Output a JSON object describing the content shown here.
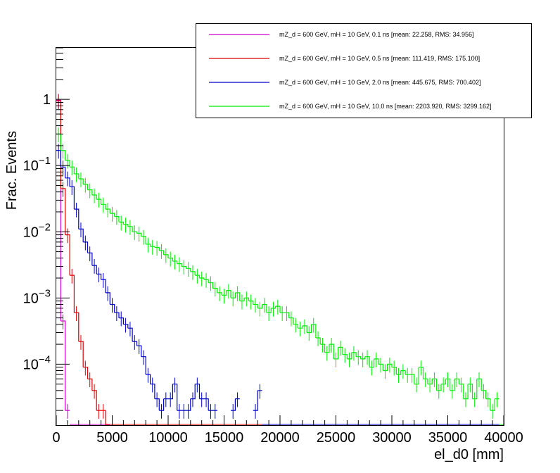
{
  "chart_data": {
    "type": "line",
    "style": "step-histogram",
    "xlabel": "el_d0 [mm]",
    "ylabel": "Frac. Events",
    "xlim": [
      0,
      40000
    ],
    "ylim": [
      1.2e-05,
      6
    ],
    "yscale": "log",
    "bin_width": 400,
    "x_ticks": [
      0,
      5000,
      10000,
      15000,
      20000,
      25000,
      30000,
      35000,
      40000
    ],
    "x_tick_labels": [
      "0",
      "5000",
      "10000",
      "15000",
      "20000",
      "25000",
      "30000",
      "35000",
      "40000"
    ],
    "y_ticks": [
      0.0001,
      0.001,
      0.01,
      0.1,
      1
    ],
    "y_tick_mantissa": [
      "10",
      "10",
      "10",
      "10",
      "1"
    ],
    "y_tick_exponents": [
      "−4",
      "−3",
      "−2",
      "−1",
      ""
    ],
    "grid": false,
    "legend_position": "top-right",
    "series": [
      {
        "name": "mZ_d = 600 GeV, mH = 10 GeV, 0.1 ns [mean: 22.258, RMS: 34.956]",
        "color": "#cc00cc",
        "x": [
          200,
          600,
          1000
        ],
        "values": [
          0.97,
          0.00045,
          2e-05
        ]
      },
      {
        "name": "mZ_d = 600 GeV, mH = 10 GeV, 0.5 ns [mean: 111.419, RMS: 175.100]",
        "color": "#dd0000",
        "x": [
          200,
          600,
          1000,
          1400,
          1800,
          2200,
          2600,
          3000,
          3400,
          3800,
          4200,
          4600
        ],
        "values": [
          0.95,
          0.045,
          0.009,
          0.0022,
          0.0006,
          0.00022,
          9e-05,
          6e-05,
          4e-05,
          2e-05,
          2e-05,
          1e-05
        ]
      },
      {
        "name": "mZ_d = 600 GeV, mH = 10 GeV, 2.0 ns [mean: 445.675, RMS: 700.402]",
        "color": "#0000cc",
        "x": [
          200,
          600,
          1000,
          1400,
          1800,
          2200,
          2600,
          3000,
          3400,
          3800,
          4200,
          4600,
          5000,
          5400,
          5800,
          6200,
          6600,
          7000,
          7400,
          7800,
          8200,
          8600,
          9000,
          9400,
          9800,
          10200,
          10600,
          11000,
          11400,
          11800,
          12200,
          12600,
          13000,
          13400,
          13800,
          14200,
          15800,
          16200,
          17800,
          18200
        ],
        "values": [
          0.17,
          0.095,
          0.065,
          0.048,
          0.022,
          0.011,
          0.007,
          0.0048,
          0.0031,
          0.0023,
          0.0019,
          0.0012,
          0.0008,
          0.0006,
          0.0005,
          0.0004,
          0.00035,
          0.00022,
          0.00019,
          0.00013,
          7e-05,
          5e-05,
          3e-05,
          2e-05,
          3e-05,
          3e-05,
          5e-05,
          2e-05,
          2e-05,
          2e-05,
          3e-05,
          5e-05,
          3e-05,
          3e-05,
          2e-05,
          2e-05,
          2e-05,
          3e-05,
          2e-05,
          4e-05
        ]
      },
      {
        "name": "mZ_d = 600 GeV, mH = 10 GeV, 10.0 ns [mean: 2203.920, RMS: 3299.162]",
        "color": "#00ee00",
        "x": [
          200,
          600,
          1000,
          1400,
          1800,
          2200,
          2600,
          3000,
          3400,
          3800,
          4200,
          4600,
          5000,
          5400,
          5800,
          6200,
          6600,
          7000,
          7400,
          7800,
          8200,
          8600,
          9000,
          9400,
          9800,
          10200,
          10600,
          11000,
          11400,
          11800,
          12200,
          12600,
          13000,
          13400,
          13800,
          14200,
          14600,
          15000,
          15400,
          15800,
          16200,
          16600,
          17000,
          17400,
          17800,
          18200,
          18600,
          19000,
          19400,
          19800,
          20200,
          20600,
          21000,
          21400,
          21800,
          22200,
          22600,
          23000,
          23400,
          23800,
          24200,
          24600,
          25000,
          25400,
          25800,
          26200,
          26600,
          27000,
          27400,
          27800,
          28200,
          28600,
          29000,
          29400,
          29800,
          30200,
          30600,
          31000,
          31400,
          31800,
          32200,
          32600,
          33000,
          33400,
          33800,
          34200,
          34600,
          35000,
          35400,
          35800,
          36200,
          36600,
          37000,
          37400,
          37800,
          38200,
          38600,
          39000,
          39400
        ],
        "values": [
          0.3,
          0.17,
          0.12,
          0.095,
          0.075,
          0.063,
          0.052,
          0.043,
          0.036,
          0.031,
          0.026,
          0.022,
          0.019,
          0.017,
          0.014,
          0.013,
          0.012,
          0.01,
          0.0095,
          0.0085,
          0.0065,
          0.006,
          0.0058,
          0.0052,
          0.0045,
          0.004,
          0.0036,
          0.0033,
          0.003,
          0.0028,
          0.0025,
          0.0022,
          0.002,
          0.0019,
          0.0017,
          0.0014,
          0.0012,
          0.0011,
          0.0013,
          0.001,
          0.0012,
          0.0009,
          0.001,
          0.0009,
          0.0008,
          0.0007,
          0.0008,
          0.0006,
          0.0007,
          0.00075,
          0.0006,
          0.0006,
          0.0005,
          0.0004,
          0.00035,
          0.00038,
          0.0003,
          0.0004,
          0.00025,
          0.0002,
          0.00015,
          0.0002,
          0.00012,
          0.00018,
          0.00014,
          0.00012,
          0.00015,
          0.00013,
          0.00012,
          0.00013,
          9e-05,
          0.00012,
          0.0001,
          8e-05,
          0.0001,
          9e-05,
          7e-05,
          8e-05,
          7e-05,
          7e-05,
          5e-05,
          9e-05,
          6e-05,
          5e-05,
          6e-05,
          4e-05,
          5e-05,
          6e-05,
          4e-05,
          6e-05,
          5e-05,
          3e-05,
          5e-05,
          3e-05,
          6e-05,
          4e-05,
          3e-05,
          2e-05,
          3e-05
        ]
      }
    ]
  }
}
